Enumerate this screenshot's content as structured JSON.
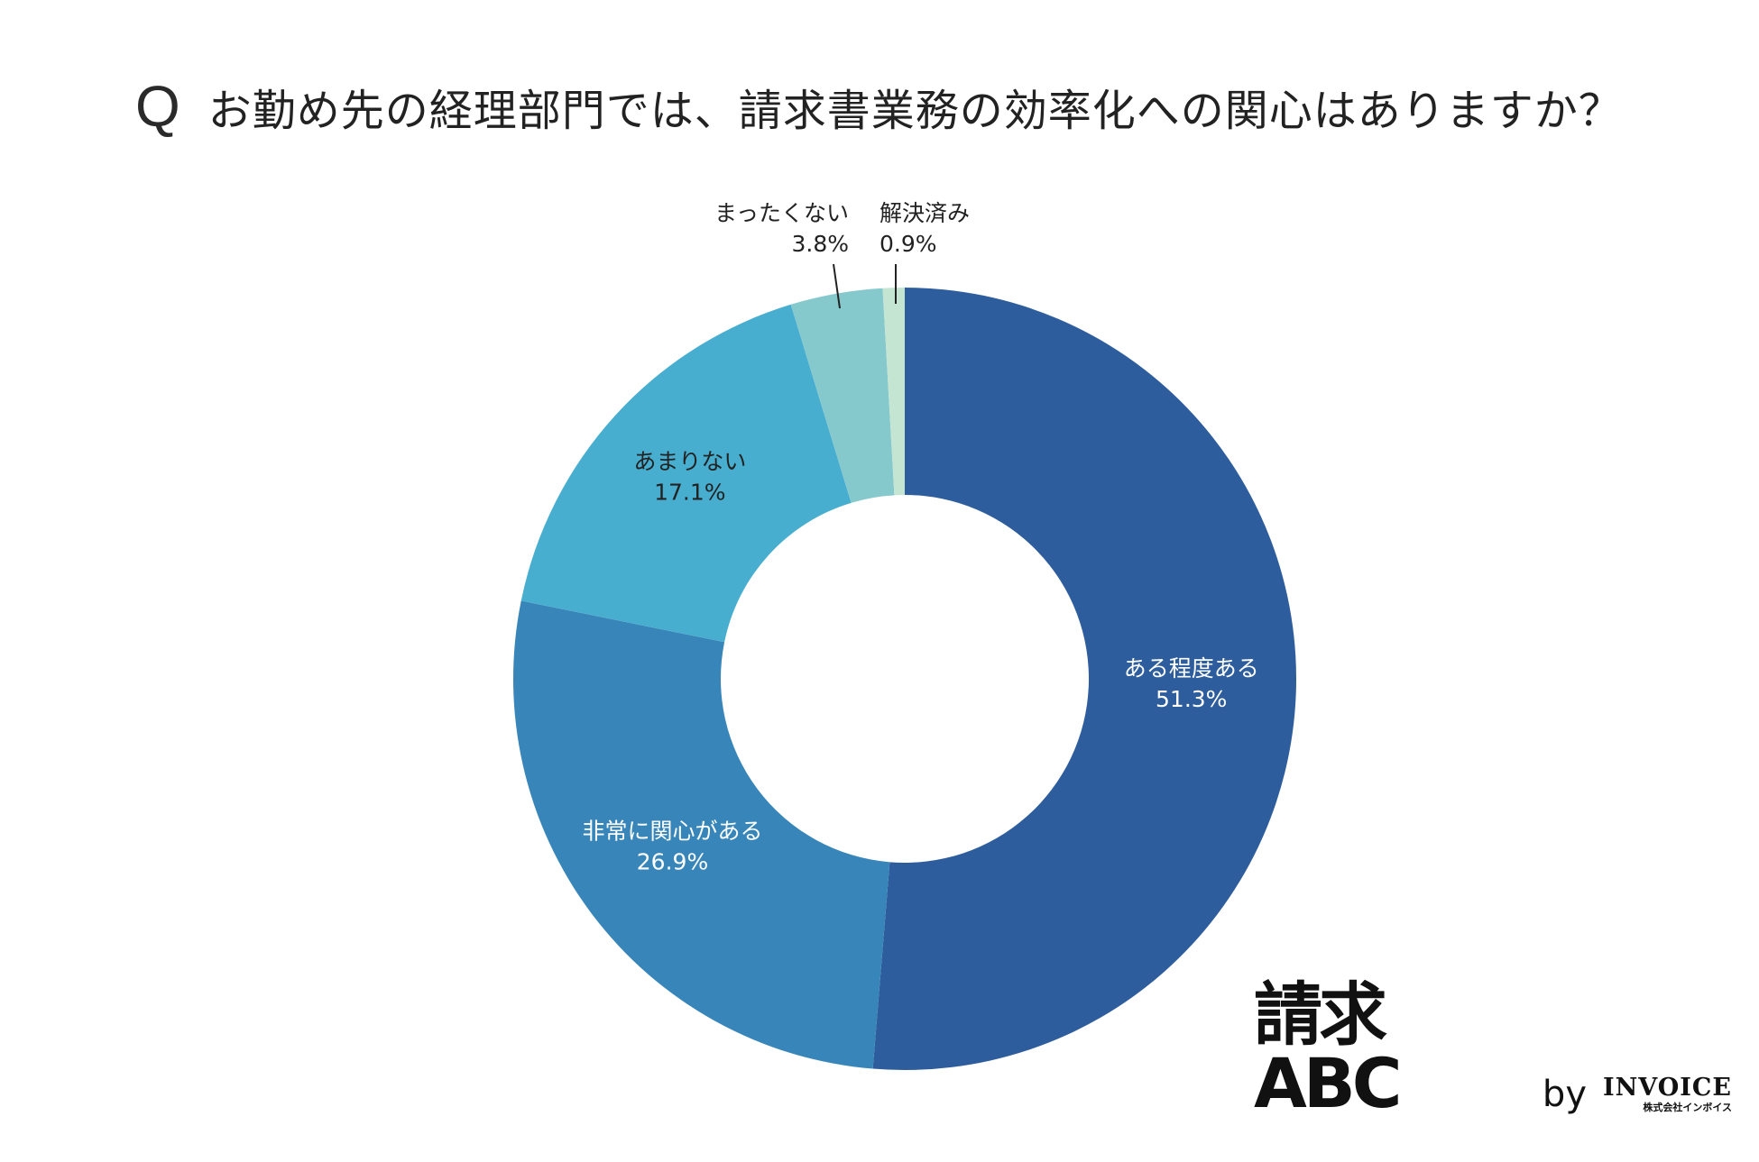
{
  "question": {
    "marker": "Q",
    "text": "お勤め先の経理部門では、請求書業務の効率化への関心はありますか？"
  },
  "chart_data": {
    "type": "pie",
    "donut": true,
    "start": "12 o'clock",
    "direction": "clockwise",
    "categories": [
      "ある程度ある",
      "非常に関心がある",
      "あまりない",
      "まったくない",
      "解決済み"
    ],
    "values": [
      51.3,
      26.9,
      17.1,
      3.8,
      0.9
    ],
    "value_labels": [
      "51.3%",
      "26.9%",
      "17.1%",
      "3.8%",
      "0.9%"
    ],
    "colors": [
      "#2d5d9c",
      "#3886b9",
      "#48aecf",
      "#86c9cd",
      "#c5e5d3"
    ],
    "label_colors": [
      "#ffffff",
      "#ffffff",
      "#222222",
      "#222222",
      "#222222"
    ],
    "outside_labels": [
      "まったくない",
      "解決済み"
    ]
  },
  "logo": {
    "main": "請求ABC",
    "by": "by",
    "company": "INVOICE",
    "company_sub": "株式会社インボイス"
  }
}
